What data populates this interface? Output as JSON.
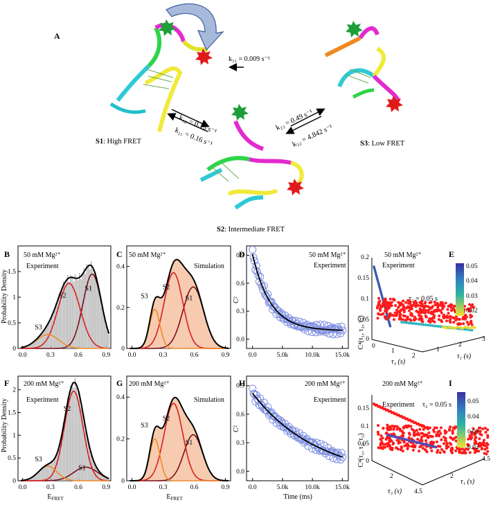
{
  "panel_A": {
    "letter": "A",
    "states": {
      "s1": {
        "name": "S1",
        "desc": ": High FRET"
      },
      "s2": {
        "name": "S2",
        "desc": ": Intermediate FRET"
      },
      "s3": {
        "name": "S3",
        "desc": ": Low FRET"
      }
    },
    "rates": {
      "k31": "k₃₁ = 0.009 s⁻¹",
      "k12": "k₁₂ = 0.15 s⁻¹",
      "k21": "k₂₁ = 0.16 s⁻¹",
      "k23": "k₂₃ = 0.49 s⁻¹",
      "k32": "k₃₂ = 4.842 s⁻¹"
    }
  },
  "letters": {
    "B": "B",
    "C": "C",
    "D": "D",
    "E": "E",
    "F": "F",
    "G": "G",
    "H": "H",
    "I": "I"
  },
  "labels": {
    "mg50": "50 mM Mg²⁺",
    "mg200": "200 mM Mg²⁺",
    "experiment": "Experiment",
    "simulation": "Simulation",
    "ylabel_hist": "Probability Density",
    "xlabel_efret": "E",
    "xlabel_efret_sub": "FRET",
    "ylabel_c2": "C²",
    "xlabel_time": "Time (ms)",
    "tau2": "τ₂ = 0.05 s",
    "c4_label": "C⁴(τ₁, τ₂, τ₃)",
    "tau3_label": "τ₃ (s)",
    "tau1_label": "τ₁ (s)",
    "s1": "S1",
    "s2": "S2",
    "s3": "S3"
  },
  "colors": {
    "hist_bar": "#b5b5b5",
    "sim_fill": "#f6cbb0",
    "s1": "#7a0e1a",
    "s2": "#d81e1e",
    "s3": "#f08a2a",
    "total": "#000000",
    "circles": "#7d8ee0",
    "scatter": "#ff1a1a"
  },
  "chart_data": [
    {
      "panel": "B",
      "type": "bar",
      "xlabel": "EFRET",
      "ylabel": "Probability Density",
      "xlim": [
        -0.05,
        0.95
      ],
      "ylim": [
        0,
        2.0
      ],
      "xticks": [
        "0.0",
        "0.3",
        "0.6",
        "0.9"
      ],
      "yticks": [
        "0",
        "0.5",
        "1",
        "1.5"
      ],
      "series": [
        {
          "name": "S1",
          "type": "gaussian",
          "mu": 0.75,
          "sigma": 0.1,
          "amp": 1.45
        },
        {
          "name": "S2",
          "type": "gaussian",
          "mu": 0.5,
          "sigma": 0.12,
          "amp": 1.27
        },
        {
          "name": "S3",
          "type": "gaussian",
          "mu": 0.27,
          "sigma": 0.12,
          "amp": 0.27
        }
      ]
    },
    {
      "panel": "C",
      "type": "area",
      "xlabel": "EFRET",
      "xlim": [
        -0.05,
        0.95
      ],
      "ylim": [
        0,
        0.5
      ],
      "xticks": [
        "0.0",
        "0.3",
        "0.6",
        "0.9"
      ],
      "yticks": [
        "0",
        "0.2",
        "0.4"
      ],
      "series": [
        {
          "name": "S1",
          "type": "gaussian",
          "mu": 0.59,
          "sigma": 0.1,
          "amp": 0.3
        },
        {
          "name": "S2",
          "type": "gaussian",
          "mu": 0.4,
          "sigma": 0.09,
          "amp": 0.37
        },
        {
          "name": "S3",
          "type": "gaussian",
          "mu": 0.22,
          "sigma": 0.05,
          "amp": 0.19
        }
      ]
    },
    {
      "panel": "D",
      "type": "scatter",
      "xlabel": "",
      "ylabel": "C²",
      "xlim": [
        -1000,
        16000
      ],
      "ylim": [
        -0.1,
        1.0
      ],
      "xticks": [
        "0.0",
        "5.0k",
        "10.0k",
        "15.0k"
      ],
      "yticks": [
        "0.0",
        "0.3",
        "0.6",
        "0.9"
      ],
      "fit": {
        "form": "a*exp(-t/tau)+c",
        "a": 0.82,
        "tau": 3000,
        "c": 0.09
      }
    },
    {
      "panel": "F",
      "type": "bar",
      "xlabel": "EFRET",
      "ylabel": "Probability Density",
      "xlim": [
        -0.05,
        0.95
      ],
      "ylim": [
        0,
        2.3
      ],
      "xticks": [
        "0.0",
        "0.3",
        "0.6",
        "0.9"
      ],
      "yticks": [
        "0",
        "0.5",
        "1",
        "1.5",
        "2"
      ],
      "series": [
        {
          "name": "S1",
          "type": "gaussian",
          "mu": 0.68,
          "sigma": 0.13,
          "amp": 0.3
        },
        {
          "name": "S2",
          "type": "gaussian",
          "mu": 0.55,
          "sigma": 0.1,
          "amp": 1.97
        },
        {
          "name": "S3",
          "type": "gaussian",
          "mu": 0.27,
          "sigma": 0.1,
          "amp": 0.32
        }
      ]
    },
    {
      "panel": "G",
      "type": "area",
      "xlabel": "EFRET",
      "xlim": [
        -0.05,
        0.95
      ],
      "ylim": [
        0,
        0.5
      ],
      "xticks": [
        "0.0",
        "0.3",
        "0.6",
        "0.9"
      ],
      "yticks": [
        "0",
        "0.2",
        "0.4"
      ],
      "series": [
        {
          "name": "S1",
          "type": "gaussian",
          "mu": 0.59,
          "sigma": 0.09,
          "amp": 0.22
        },
        {
          "name": "S2",
          "type": "gaussian",
          "mu": 0.4,
          "sigma": 0.09,
          "amp": 0.37
        },
        {
          "name": "S3",
          "type": "gaussian",
          "mu": 0.22,
          "sigma": 0.05,
          "amp": 0.2
        }
      ]
    },
    {
      "panel": "H",
      "type": "scatter",
      "xlabel": "Time (ms)",
      "ylabel": "C²",
      "xlim": [
        -1000,
        16000
      ],
      "ylim": [
        -0.1,
        1.0
      ],
      "xticks": [
        "0.0",
        "5.0k",
        "10.0k",
        "15.0k"
      ],
      "yticks": [
        "0.0",
        "0.3",
        "0.6",
        "0.9"
      ],
      "fit": {
        "form": "a*exp(-t/tau)+c",
        "a": 0.9,
        "tau": 11000,
        "c": -0.08
      }
    },
    {
      "panel": "E",
      "type": "scatter",
      "zlabel": "C⁴(τ₁, τ₂, τ₃)",
      "zticks": [
        "0",
        "0.05",
        "0.1",
        "0.15",
        "0.2"
      ],
      "tau3_ticks": [
        "0",
        "1",
        "2"
      ],
      "tau1_ticks": [
        "1",
        "2",
        "3"
      ],
      "colorbar_ticks": [
        "0.05",
        "0.04",
        "0.03",
        "0.02"
      ]
    },
    {
      "panel": "I",
      "type": "scatter",
      "zlabel": "C⁴(τ₁, τ₂, τ₃)",
      "zticks": [
        "0",
        "0.05",
        "0.1",
        "0.15"
      ],
      "tau3_ticks": [
        "2",
        "4.5"
      ],
      "tau1_ticks": [
        "2",
        "4.5"
      ],
      "colorbar_ticks": [
        "0.05",
        "0.04",
        "0.03",
        "0.02"
      ]
    }
  ]
}
